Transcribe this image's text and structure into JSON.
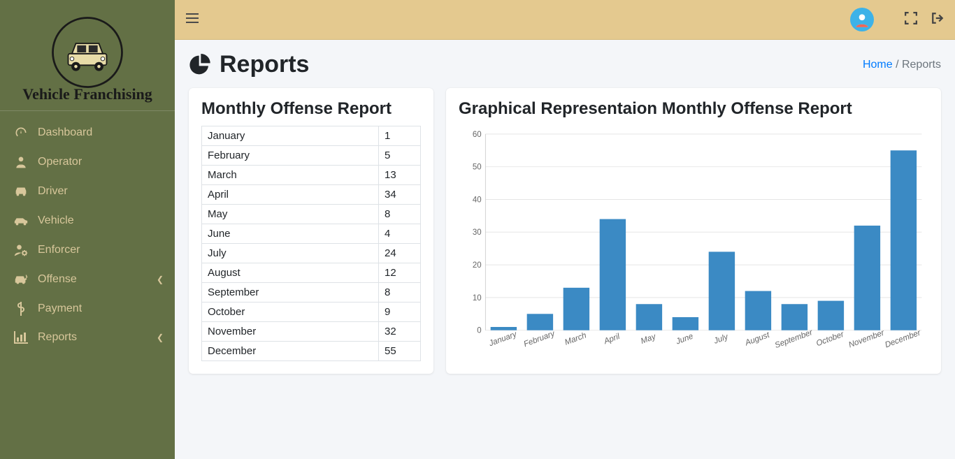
{
  "brand": {
    "name": "Vehicle Franchising"
  },
  "sidebar": {
    "items": [
      {
        "icon": "tachometer",
        "label": "Dashboard",
        "submenu": false
      },
      {
        "icon": "user-tie",
        "label": "Operator",
        "submenu": false
      },
      {
        "icon": "car",
        "label": "Driver",
        "submenu": false
      },
      {
        "icon": "car-side",
        "label": "Vehicle",
        "submenu": false
      },
      {
        "icon": "user-cog",
        "label": "Enforcer",
        "submenu": false
      },
      {
        "icon": "car-crash",
        "label": "Offense",
        "submenu": true
      },
      {
        "icon": "dollar",
        "label": "Payment",
        "submenu": false
      },
      {
        "icon": "chart-bar",
        "label": "Reports",
        "submenu": true
      }
    ]
  },
  "page": {
    "title": "Reports",
    "breadcrumb_home": "Home",
    "breadcrumb_current": "Reports"
  },
  "table_card": {
    "title": "Monthly Offense Report",
    "rows": [
      [
        "January",
        "1"
      ],
      [
        "February",
        "5"
      ],
      [
        "March",
        "13"
      ],
      [
        "April",
        "34"
      ],
      [
        "May",
        "8"
      ],
      [
        "June",
        "4"
      ],
      [
        "July",
        "24"
      ],
      [
        "August",
        "12"
      ],
      [
        "September",
        "8"
      ],
      [
        "October",
        "9"
      ],
      [
        "November",
        "32"
      ],
      [
        "December",
        "55"
      ]
    ]
  },
  "chart_card": {
    "title": "Graphical Representaion Monthly Offense Report",
    "type": "bar",
    "categories": [
      "January",
      "February",
      "March",
      "April",
      "May",
      "June",
      "July",
      "August",
      "September",
      "October",
      "November",
      "December"
    ],
    "values": [
      1,
      5,
      13,
      34,
      8,
      4,
      24,
      12,
      8,
      9,
      32,
      55
    ],
    "bar_color": "#3b8ac4",
    "ylim": [
      0,
      60
    ],
    "ytick_step": 10,
    "grid_color": "#e5e5e5",
    "axis_color": "#d0d0d0",
    "label_color": "#666666",
    "label_fontsize": 12,
    "xlabel_rotate_deg": -20,
    "bar_width_ratio": 0.72,
    "background_color": "#ffffff"
  },
  "colors": {
    "sidebar_bg": "#637045",
    "sidebar_text": "#d8c79b",
    "topbar_bg": "#e4c98f",
    "link": "#007bff"
  }
}
